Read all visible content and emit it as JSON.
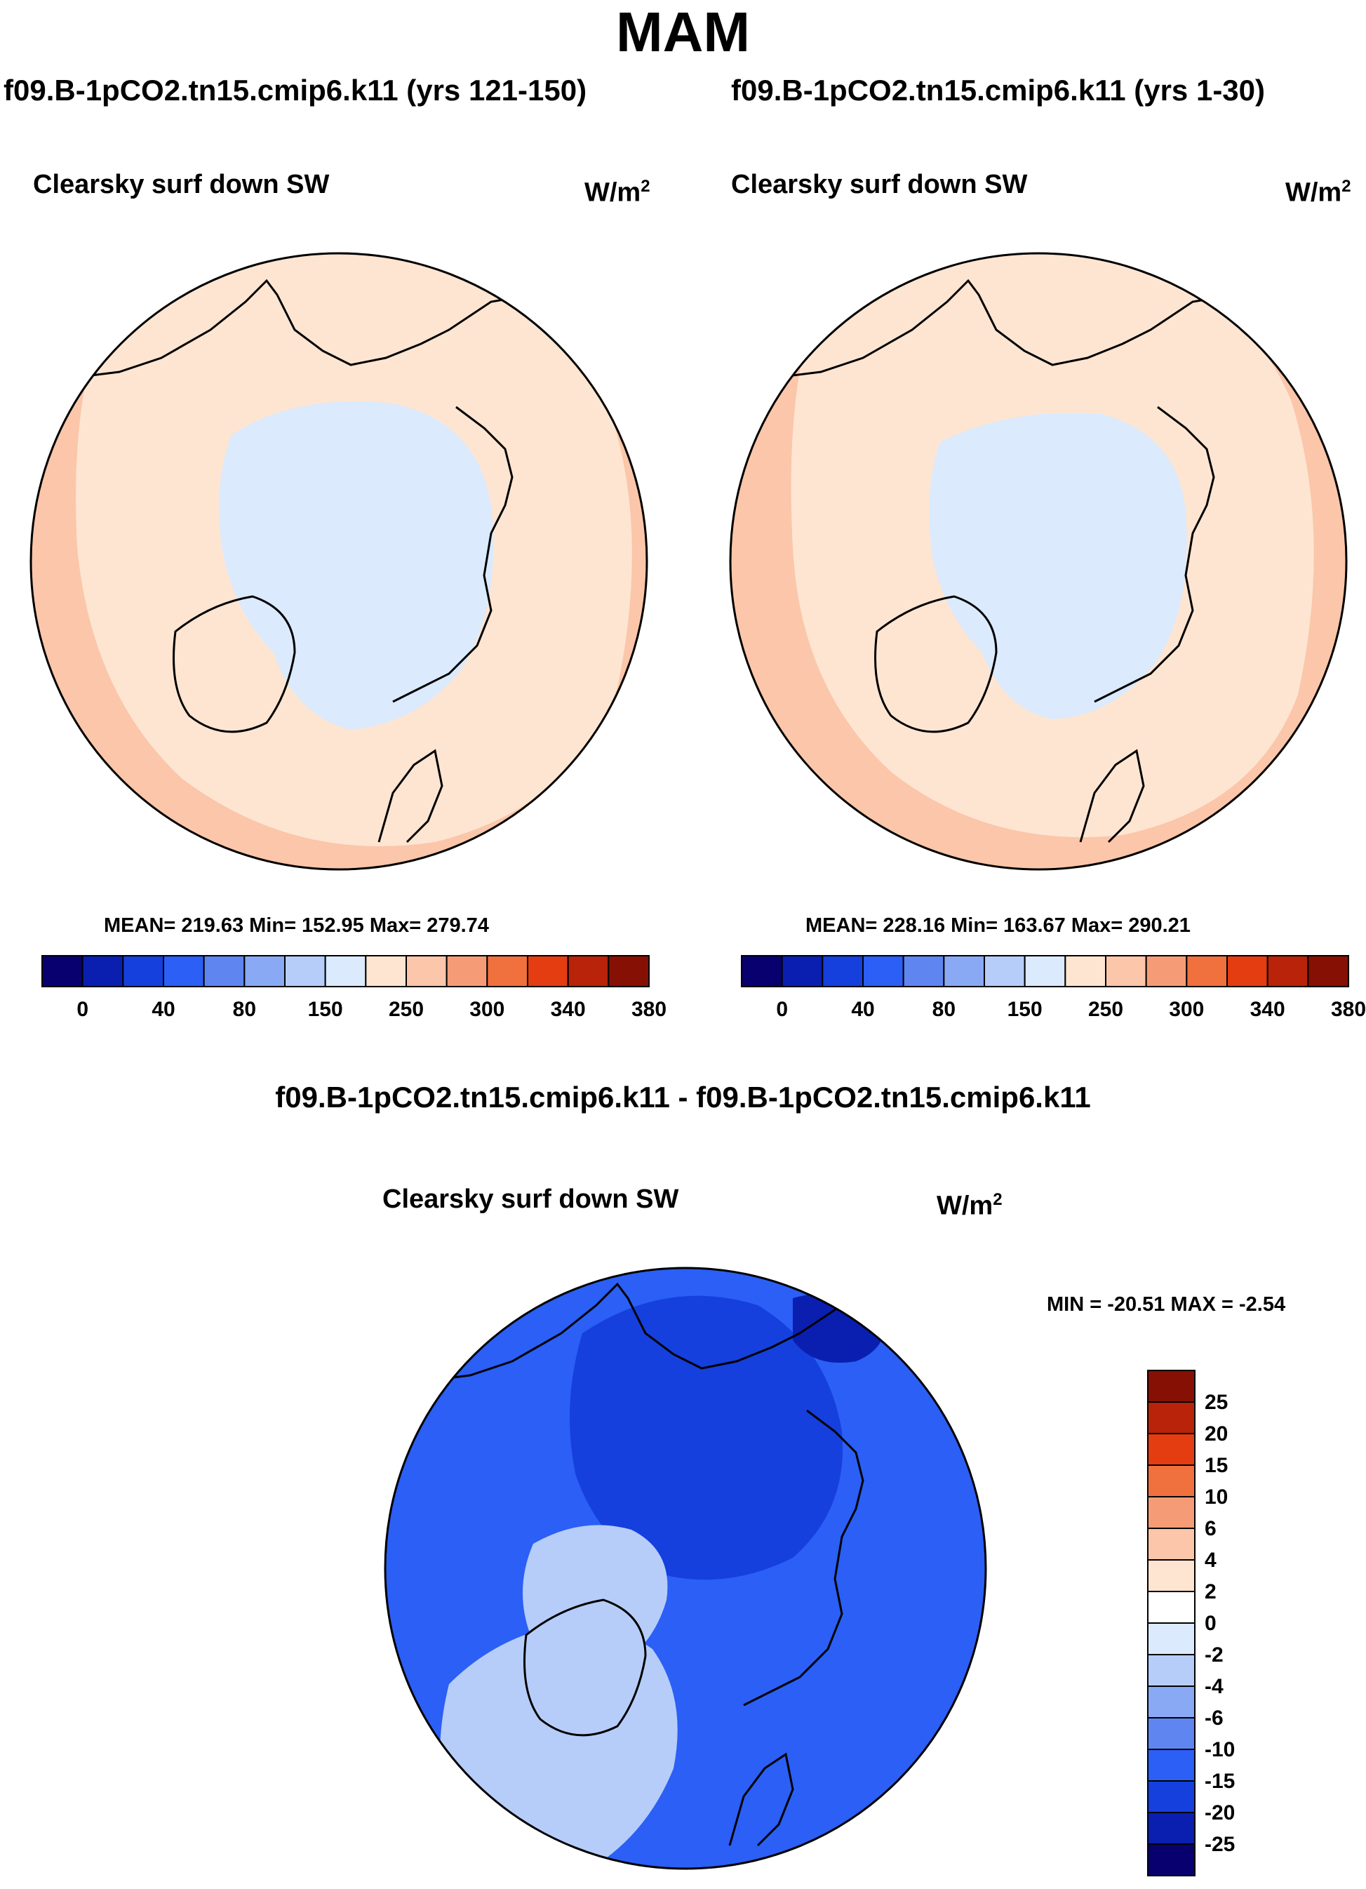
{
  "figure": {
    "title": "MAM"
  },
  "chart_data": [
    {
      "type": "polar-contour-map",
      "title": "f09.B-1pCO2.tn15.cmip6.k11 (yrs 121-150)",
      "variable": "Clearsky surf down SW",
      "units": "W/m",
      "units_exp": "2",
      "stats_text": "MEAN= 219.63  Min= 152.95  Max= 279.74",
      "mean": 219.63,
      "min": 152.95,
      "max": 279.74,
      "colorbar": {
        "orientation": "horizontal",
        "levels": [
          0,
          20,
          40,
          60,
          80,
          100,
          150,
          200,
          250,
          275,
          300,
          320,
          340,
          360,
          380
        ],
        "tick_labels": [
          "0",
          "40",
          "80",
          "150",
          "250",
          "300",
          "340",
          "380"
        ],
        "colors": [
          "#08006e",
          "#0a1fb0",
          "#1540dd",
          "#2b5ff5",
          "#5f86f0",
          "#89a9f4",
          "#b6cdf9",
          "#dbeafd",
          "#fde5d2",
          "#fbc6a9",
          "#f59c77",
          "#f0703e",
          "#e43d12",
          "#b82309",
          "#861003"
        ]
      },
      "regions": [
        {
          "name": "arctic-ocean",
          "color": "#dbeafd"
        },
        {
          "name": "midlatitude",
          "color": "#fde5d2"
        },
        {
          "name": "subtropical-rim",
          "color": "#fbc6a9"
        }
      ]
    },
    {
      "type": "polar-contour-map",
      "title": "f09.B-1pCO2.tn15.cmip6.k11 (yrs 1-30)",
      "variable": "Clearsky surf down SW",
      "units": "W/m",
      "units_exp": "2",
      "stats_text": "MEAN= 228.16  Min= 163.67  Max= 290.21",
      "mean": 228.16,
      "min": 163.67,
      "max": 290.21,
      "colorbar": {
        "orientation": "horizontal",
        "levels": [
          0,
          20,
          40,
          60,
          80,
          100,
          150,
          200,
          250,
          275,
          300,
          320,
          340,
          360,
          380
        ],
        "tick_labels": [
          "0",
          "40",
          "80",
          "150",
          "250",
          "300",
          "340",
          "380"
        ],
        "colors": [
          "#08006e",
          "#0a1fb0",
          "#1540dd",
          "#2b5ff5",
          "#5f86f0",
          "#89a9f4",
          "#b6cdf9",
          "#dbeafd",
          "#fde5d2",
          "#fbc6a9",
          "#f59c77",
          "#f0703e",
          "#e43d12",
          "#b82309",
          "#861003"
        ]
      },
      "regions": [
        {
          "name": "arctic-ocean",
          "color": "#dbeafd"
        },
        {
          "name": "midlatitude",
          "color": "#fde5d2"
        },
        {
          "name": "subtropical-rim",
          "color": "#fbc6a9"
        }
      ]
    },
    {
      "type": "polar-contour-map",
      "title": "f09.B-1pCO2.tn15.cmip6.k11 - f09.B-1pCO2.tn15.cmip6.k11",
      "variable": "Clearsky surf down SW",
      "units": "W/m",
      "units_exp": "2",
      "stats_text": "MIN = -20.51 MAX =  -2.54",
      "min": -20.51,
      "max": -2.54,
      "colorbar": {
        "orientation": "vertical",
        "tick_labels": [
          "25",
          "20",
          "15",
          "10",
          "6",
          "4",
          "2",
          "0",
          "-2",
          "-4",
          "-6",
          "-10",
          "-15",
          "-20",
          "-25"
        ],
        "colors": [
          "#861003",
          "#b82309",
          "#e43d12",
          "#f0703e",
          "#f59c77",
          "#fbc6a9",
          "#fde5d2",
          "#ffffff",
          "#dbeafd",
          "#b6cdf9",
          "#89a9f4",
          "#5f86f0",
          "#2b5ff5",
          "#1540dd",
          "#0a1fb0",
          "#08006e"
        ]
      },
      "regions": [
        {
          "name": "background",
          "color": "#2b5ff5"
        },
        {
          "name": "north-america",
          "color": "#b6cdf9"
        },
        {
          "name": "arctic-basin",
          "color": "#1540dd"
        }
      ]
    }
  ]
}
